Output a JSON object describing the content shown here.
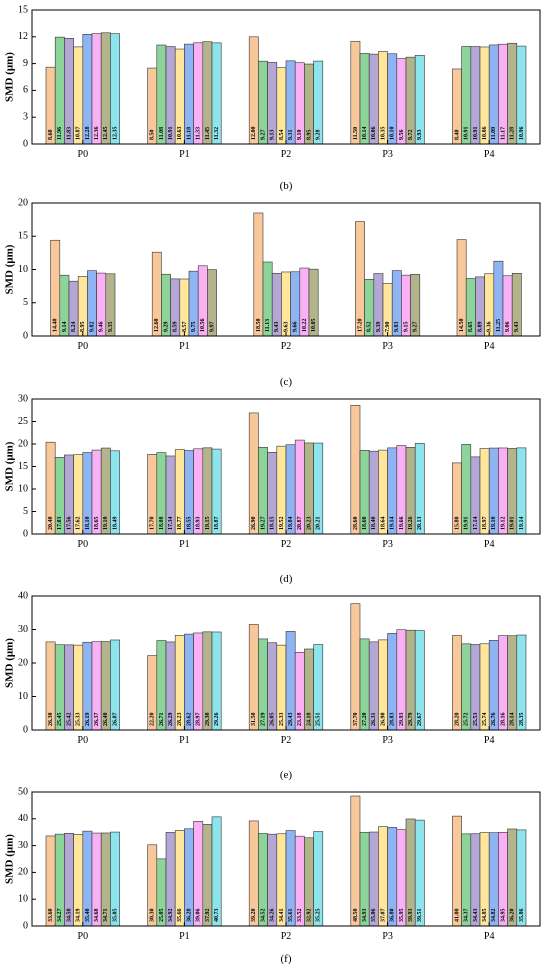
{
  "colors": {
    "series": [
      "#f9c89a",
      "#8cd49a",
      "#b4a7d6",
      "#ffe69a",
      "#8fb4f4",
      "#f9b0f4",
      "#b4b48c",
      "#8ce4ec"
    ],
    "stroke": "#333333"
  },
  "chart_data": [
    {
      "type": "bar",
      "panel_label": "",
      "ylabel": "SMD (μm)",
      "ylim": [
        0,
        15
      ],
      "yticks": [
        0,
        3,
        6,
        9,
        12,
        15
      ],
      "categories": [
        "P0",
        "P1",
        "P2",
        "P3",
        "P4"
      ],
      "series": [
        {
          "values": [
            8.6,
            8.5,
            12.0,
            11.5,
            8.4
          ],
          "labels": [
            "8.60",
            "8.50",
            "12.00",
            "11.50",
            "8.40"
          ]
        },
        {
          "values": [
            11.96,
            11.08,
            9.27,
            10.14,
            10.91
          ],
          "labels": [
            "11.96",
            "11.08",
            "9.27",
            "10.14",
            "10.91"
          ]
        },
        {
          "values": [
            11.83,
            10.91,
            9.13,
            10.06,
            10.91
          ],
          "labels": [
            "11.83",
            "10.91",
            "9.13",
            "10.06",
            "10.91"
          ]
        },
        {
          "values": [
            10.87,
            10.63,
            8.54,
            10.35,
            10.86
          ],
          "labels": [
            "10.87",
            "10.63",
            "8.54",
            "10.35",
            "10.86"
          ]
        },
        {
          "values": [
            12.28,
            11.18,
            9.31,
            10.1,
            11.09
          ],
          "labels": [
            "12.28",
            "11.18",
            "9.31",
            "10.10",
            "11.09"
          ]
        },
        {
          "values": [
            12.36,
            11.33,
            9.1,
            9.56,
            11.17
          ],
          "labels": [
            "12.36",
            "11.33",
            "9.10",
            "9.56",
            "11.17"
          ]
        },
        {
          "values": [
            12.45,
            11.45,
            8.95,
            9.72,
            11.28
          ],
          "labels": [
            "12.45",
            "11.45",
            "8.95",
            "9.72",
            "11.28"
          ]
        },
        {
          "values": [
            12.35,
            11.32,
            9.28,
            9.93,
            10.96
          ],
          "labels": [
            "12.35",
            "11.32",
            "9.28",
            "9.93",
            "10.96"
          ]
        }
      ]
    },
    {
      "type": "bar",
      "panel_label": "(b)",
      "ylabel": "SMD (μm)",
      "ylim": [
        0,
        20
      ],
      "yticks": [
        0,
        5,
        10,
        15,
        20
      ],
      "categories": [
        "P0",
        "P1",
        "P2",
        "P3",
        "P4"
      ],
      "series": [
        {
          "values": [
            14.4,
            12.6,
            18.5,
            17.2,
            14.5
          ],
          "labels": [
            "14.40",
            "12.60",
            "18.50",
            "17.20",
            "14.50"
          ]
        },
        {
          "values": [
            9.14,
            9.29,
            11.13,
            8.52,
            8.65
          ],
          "labels": [
            "9.14",
            "9.29",
            "11.13",
            "8.52",
            "8.65"
          ]
        },
        {
          "values": [
            8.24,
            8.59,
            9.43,
            9.39,
            8.89
          ],
          "labels": [
            "8.24",
            "8.59",
            "9.43",
            "9.39",
            "8.89"
          ]
        },
        {
          "values": [
            8.95,
            8.57,
            9.63,
            7.9,
            9.36
          ],
          "labels": [
            "8.95",
            "8.57",
            "9.63",
            "7.90",
            "9.36"
          ]
        },
        {
          "values": [
            9.82,
            9.75,
            9.66,
            9.83,
            11.25
          ],
          "labels": [
            "9.82",
            "9.75",
            "9.66",
            "9.83",
            "11.25"
          ]
        },
        {
          "values": [
            9.46,
            10.56,
            10.22,
            9.15,
            9.06
          ],
          "labels": [
            "9.46",
            "10.56",
            "10.22",
            "9.15",
            "9.06"
          ]
        },
        {
          "values": [
            9.35,
            9.97,
            10.05,
            9.27,
            9.43
          ],
          "labels": [
            "9.35",
            "9.97",
            "10.05",
            "9.27",
            "9.43"
          ]
        }
      ]
    },
    {
      "type": "bar",
      "panel_label": "(c)",
      "ylabel": "SMD (μm)",
      "ylim": [
        0,
        30
      ],
      "yticks": [
        0,
        5,
        10,
        15,
        20,
        25,
        30
      ],
      "categories": [
        "P0",
        "P1",
        "P2",
        "P3",
        "P4"
      ],
      "series": [
        {
          "values": [
            20.4,
            17.7,
            26.9,
            28.6,
            15.8
          ],
          "labels": [
            "20.40",
            "17.70",
            "26.90",
            "28.60",
            "15.80"
          ]
        },
        {
          "values": [
            17.03,
            18.08,
            19.27,
            18.6,
            19.91
          ],
          "labels": [
            "17.03",
            "18.08",
            "19.27",
            "18.60",
            "19.91"
          ]
        },
        {
          "values": [
            17.56,
            17.34,
            18.15,
            18.4,
            17.14
          ],
          "labels": [
            "17.56",
            "17.34",
            "18.15",
            "18.40",
            "17.14"
          ]
        },
        {
          "values": [
            17.62,
            18.77,
            19.52,
            18.64,
            18.97
          ],
          "labels": [
            "17.62",
            "18.77",
            "19.52",
            "18.64",
            "18.97"
          ]
        },
        {
          "values": [
            18.1,
            18.55,
            19.84,
            19.14,
            19.1
          ],
          "labels": [
            "18.10",
            "18.55",
            "19.84",
            "19.14",
            "19.10"
          ]
        },
        {
          "values": [
            18.65,
            18.93,
            20.87,
            19.66,
            19.12
          ],
          "labels": [
            "18.65",
            "18.93",
            "20.87",
            "19.66",
            "19.12"
          ]
        },
        {
          "values": [
            19.1,
            19.15,
            20.23,
            19.26,
            19.01
          ],
          "labels": [
            "19.10",
            "19.15",
            "20.23",
            "19.26",
            "19.01"
          ]
        },
        {
          "values": [
            18.49,
            18.87,
            20.21,
            20.13,
            19.14
          ],
          "labels": [
            "18.49",
            "18.87",
            "20.21",
            "20.13",
            "19.14"
          ]
        }
      ]
    },
    {
      "type": "bar",
      "panel_label": "(d)",
      "ylabel": "SMD (μm)",
      "ylim": [
        0,
        40
      ],
      "yticks": [
        0,
        10,
        20,
        30,
        40
      ],
      "categories": [
        "P0",
        "P1",
        "P2",
        "P3",
        "P4"
      ],
      "series": [
        {
          "values": [
            26.3,
            22.2,
            31.5,
            37.7,
            28.2
          ],
          "labels": [
            "26.30",
            "22.20",
            "31.50",
            "37.70",
            "28.20"
          ]
        },
        {
          "values": [
            25.45,
            26.71,
            27.19,
            27.2,
            25.72
          ],
          "labels": [
            "25.45",
            "26.71",
            "27.19",
            "27.20",
            "25.72"
          ]
        },
        {
          "values": [
            25.42,
            26.29,
            26.05,
            26.31,
            25.53
          ],
          "labels": [
            "25.42",
            "26.29",
            "26.05",
            "26.31",
            "25.53"
          ]
        },
        {
          "values": [
            25.33,
            28.23,
            25.33,
            26.9,
            25.74
          ],
          "labels": [
            "25.33",
            "28.23",
            "25.33",
            "26.90",
            "25.74"
          ]
        },
        {
          "values": [
            26.19,
            28.62,
            29.43,
            28.83,
            26.76
          ],
          "labels": [
            "26.19",
            "28.62",
            "29.43",
            "28.83",
            "26.76"
          ]
        },
        {
          "values": [
            26.37,
            28.97,
            23.18,
            29.93,
            28.16
          ],
          "labels": [
            "26.37",
            "28.97",
            "23.18",
            "29.93",
            "28.16"
          ]
        },
        {
          "values": [
            26.4,
            29.3,
            24.18,
            29.79,
            28.14
          ],
          "labels": [
            "26.40",
            "29.30",
            "24.18",
            "29.79",
            "28.14"
          ]
        },
        {
          "values": [
            26.87,
            29.26,
            25.51,
            29.67,
            28.35
          ],
          "labels": [
            "26.87",
            "29.26",
            "25.51",
            "29.67",
            "28.35"
          ]
        }
      ]
    },
    {
      "type": "bar",
      "panel_label": "(e)",
      "ylabel": "SMD (μm)",
      "ylim": [
        0,
        50
      ],
      "yticks": [
        0,
        10,
        20,
        30,
        40,
        50
      ],
      "categories": [
        "P0",
        "P1",
        "P2",
        "P3",
        "P4"
      ],
      "series": [
        {
          "values": [
            33.6,
            30.3,
            39.2,
            48.5,
            41.0
          ],
          "labels": [
            "33.60",
            "30.30",
            "39.20",
            "48.50",
            "41.00"
          ]
        },
        {
          "values": [
            34.27,
            25.05,
            34.52,
            34.93,
            34.37
          ],
          "labels": [
            "34.27",
            "25.05",
            "34.52",
            "34.93",
            "34.37"
          ]
        },
        {
          "values": [
            34.58,
            34.92,
            34.26,
            35.06,
            34.43
          ],
          "labels": [
            "34.58",
            "34.92",
            "34.26",
            "35.06",
            "34.43"
          ]
        },
        {
          "values": [
            34.19,
            35.66,
            34.41,
            37.07,
            34.85
          ],
          "labels": [
            "34.19",
            "35.66",
            "34.41",
            "37.07",
            "34.85"
          ]
        },
        {
          "values": [
            35.4,
            36.28,
            35.61,
            36.8,
            34.82
          ],
          "labels": [
            "35.40",
            "36.28",
            "35.61",
            "36.80",
            "34.82"
          ]
        },
        {
          "values": [
            34.68,
            39.06,
            33.52,
            35.95,
            34.95
          ],
          "labels": [
            "34.68",
            "39.06",
            "33.52",
            "35.95",
            "34.95"
          ]
        },
        {
          "values": [
            34.71,
            37.92,
            32.92,
            39.93,
            36.2
          ],
          "labels": [
            "34.71",
            "37.92",
            "32.92",
            "39.93",
            "36.20"
          ]
        },
        {
          "values": [
            35.05,
            40.73,
            35.25,
            39.51,
            35.86
          ],
          "labels": [
            "35.05",
            "40.73",
            "35.25",
            "39.51",
            "35.86"
          ]
        }
      ]
    }
  ],
  "final_panel_label": "(f)"
}
